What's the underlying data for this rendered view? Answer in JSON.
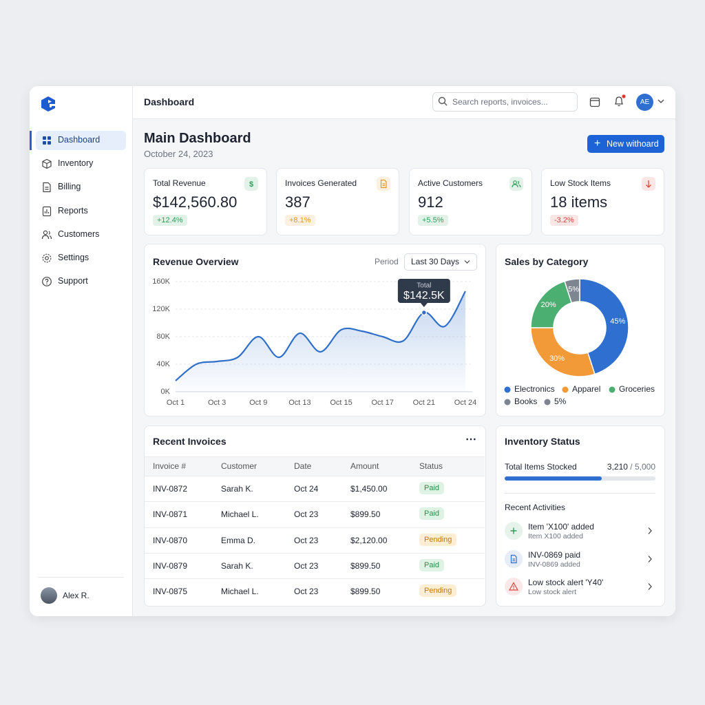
{
  "sidebar": {
    "nav": [
      "Dashboard",
      "Inventory",
      "Billing",
      "Reports",
      "Customers",
      "Settings",
      "Support"
    ],
    "active": 0,
    "user": "Alex R."
  },
  "topbar": {
    "title": "Dashboard",
    "search_placeholder": "Search reports, invoices...",
    "avatar": "AE"
  },
  "header": {
    "title": "Main Dashboard",
    "date": "October 24, 2023",
    "button": "New withoard"
  },
  "kpis": [
    {
      "label": "Total Revenue",
      "value": "$142,560.80",
      "change": "+12.4%",
      "accent": "#2f9e5a",
      "icon": "$"
    },
    {
      "label": "Invoices Generated",
      "value": "387",
      "change": "+8.1%",
      "accent": "#e8961f",
      "icon": "doc"
    },
    {
      "label": "Active Customers",
      "value": "912",
      "change": "+5.5%",
      "accent": "#2f9e5a",
      "icon": "users"
    },
    {
      "label": "Low Stock Items",
      "value": "18 items",
      "change": "-3.2%",
      "accent": "#d9463e",
      "icon": "down"
    }
  ],
  "chart_data": [
    {
      "type": "line",
      "title": "Revenue Overview",
      "period_label": "Period",
      "period_value": "Last 30 Days",
      "categories": [
        "Oct 1",
        null,
        "Oct 3",
        null,
        "Oct 9",
        null,
        "Oct 13",
        null,
        "Oct 15",
        null,
        "Oct 17",
        null,
        "Oct 21",
        null,
        "Oct 24"
      ],
      "values": [
        16000,
        40000,
        44000,
        50000,
        80000,
        50000,
        85000,
        58000,
        90000,
        88000,
        80000,
        74000,
        115000,
        95000,
        146000
      ],
      "color": "#2f6fc9",
      "ylim": [
        0,
        160000
      ],
      "yticks": [
        {
          "value": 0,
          "label": "0K"
        },
        {
          "value": 40000,
          "label": "40K"
        },
        {
          "value": 80000,
          "label": "80K"
        },
        {
          "value": 120000,
          "label": "120K"
        },
        {
          "value": 160000,
          "label": "160K"
        }
      ],
      "grid": true,
      "annotation": {
        "index": 12,
        "label": "Total",
        "text": "$142.5K"
      }
    },
    {
      "type": "pie",
      "title": "Sales by Category",
      "categories": [
        "Electronics",
        "Apparel",
        "Groceries",
        "Books"
      ],
      "values": [
        45,
        30,
        20,
        5
      ],
      "value_labels": [
        "45%",
        "30%",
        "20%",
        "5%"
      ],
      "colors": [
        "#2f6fd0",
        "#f29a38",
        "#4caf72",
        "#7d8590"
      ],
      "extra_legend": {
        "label": "5%",
        "color": "#7d8590"
      }
    }
  ],
  "invoices": {
    "title": "Recent Invoices",
    "columns": [
      "Invoice #",
      "Customer",
      "Date",
      "Amount",
      "Status"
    ],
    "rows": [
      [
        "INV-0872",
        "Sarah K.",
        "Oct 24",
        "$1,450.00",
        "Paid"
      ],
      [
        "INV-0871",
        "Michael L.",
        "Oct 23",
        "$899.50",
        "Paid"
      ],
      [
        "INV-0870",
        "Emma D.",
        "Oct 23",
        "$2,120.00",
        "Pending"
      ],
      [
        "INV-0879",
        "Sarah K.",
        "Oct 23",
        "$899.50",
        "Paid"
      ],
      [
        "INV-0875",
        "Michael L.",
        "Oct 23",
        "$899.50",
        "Pending"
      ]
    ],
    "status_tones": [
      "green",
      "green",
      "amber",
      "green",
      "amber"
    ]
  },
  "inventory": {
    "title": "Inventory Status",
    "stocked_label": "Total Items Stocked",
    "stocked": {
      "value": 3210,
      "label": "3,210"
    },
    "separator": "/",
    "capacity": {
      "value": 5000,
      "label": "5,000"
    },
    "activities_title": "Recent Activities",
    "activities": [
      {
        "title": "Item 'X100' added",
        "subtitle": "Item X100 added",
        "tone": "green"
      },
      {
        "title": "INV-0869 paid",
        "subtitle": "INV-0869 added",
        "tone": "blue"
      },
      {
        "title": "Low stock alert 'Y40'",
        "subtitle": "Low stock alert",
        "tone": "red"
      }
    ]
  }
}
